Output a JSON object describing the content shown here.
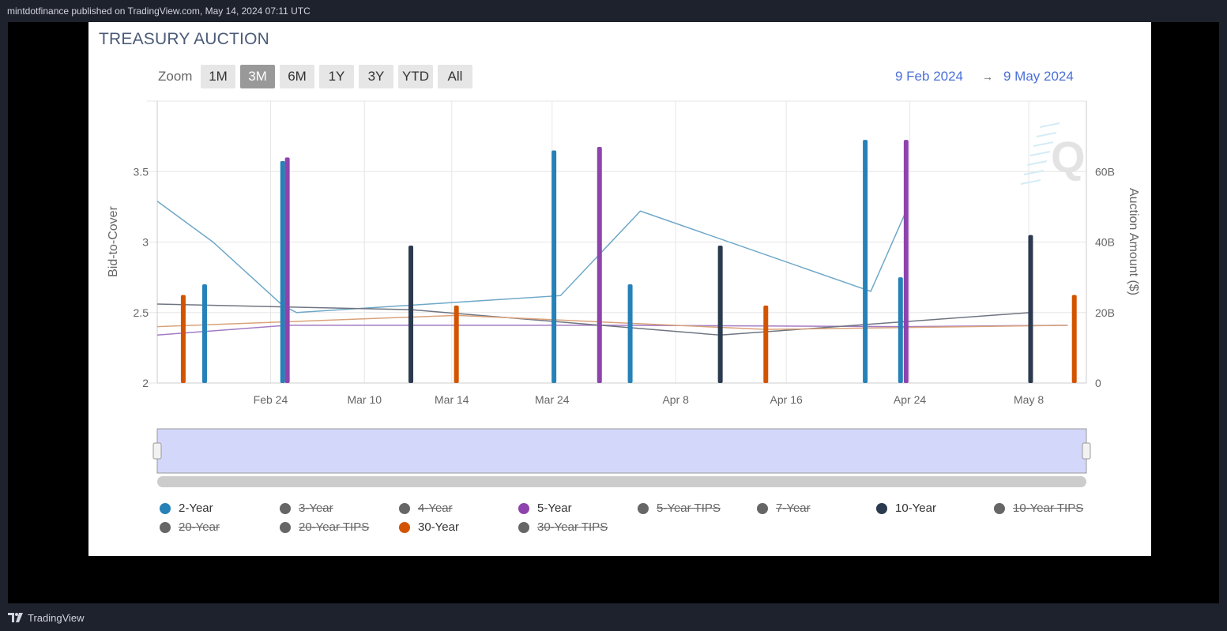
{
  "header": {
    "publisher_text": "mintdotfinance published on TradingView.com, May 14, 2024 07:11 UTC"
  },
  "footer": {
    "brand": "TradingView"
  },
  "card": {
    "title": "TREASURY AUCTION",
    "zoom_label": "Zoom",
    "zoom_buttons": [
      "1M",
      "3M",
      "6M",
      "1Y",
      "3Y",
      "YTD",
      "All"
    ],
    "zoom_active": "3M",
    "range_from": "9 Feb 2024",
    "range_arrow": "→",
    "range_to": "9 May 2024"
  },
  "colors": {
    "two_year": "#2681b8",
    "five_year": "#8e44ad",
    "ten_year": "#2b3a4e",
    "thirty_year": "#d35400",
    "hidden": "#666666",
    "navigator": "#d3d8fb"
  },
  "chart_data": {
    "type": "bar",
    "x_ticks": [
      "Feb 24",
      "Mar 10",
      "Mar 14",
      "Mar 24",
      "Apr 8",
      "Apr 16",
      "Apr 24",
      "May 8"
    ],
    "x_tick_pos": [
      0.122,
      0.223,
      0.317,
      0.425,
      0.558,
      0.677,
      0.81,
      0.938
    ],
    "ylabel_left": "Bid-to-Cover",
    "ylabel_right": "Auction Amount ($)",
    "yticks_left": [
      "2",
      "2.5",
      "3",
      "3.5"
    ],
    "yticks_right": [
      "0",
      "20B",
      "40B",
      "60B"
    ],
    "ylim_left": [
      2,
      4
    ],
    "ylim_right": [
      0,
      80
    ],
    "bars": [
      {
        "series": "30-Year",
        "x": 0.028,
        "amount": 25
      },
      {
        "series": "2-Year",
        "x": 0.051,
        "amount": 28
      },
      {
        "series": "2-Year",
        "x": 0.135,
        "amount": 63
      },
      {
        "series": "5-Year",
        "x": 0.14,
        "amount": 64
      },
      {
        "series": "10-Year",
        "x": 0.273,
        "amount": 39
      },
      {
        "series": "30-Year",
        "x": 0.322,
        "amount": 22
      },
      {
        "series": "2-Year",
        "x": 0.427,
        "amount": 66
      },
      {
        "series": "5-Year",
        "x": 0.476,
        "amount": 67
      },
      {
        "series": "2-Year",
        "x": 0.509,
        "amount": 28
      },
      {
        "series": "10-Year",
        "x": 0.606,
        "amount": 39
      },
      {
        "series": "30-Year",
        "x": 0.655,
        "amount": 22
      },
      {
        "series": "2-Year",
        "x": 0.762,
        "amount": 69
      },
      {
        "series": "2-Year",
        "x": 0.8,
        "amount": 30
      },
      {
        "series": "5-Year",
        "x": 0.806,
        "amount": 69
      },
      {
        "series": "10-Year",
        "x": 0.94,
        "amount": 42
      },
      {
        "series": "30-Year",
        "x": 0.987,
        "amount": 25
      }
    ],
    "lines": [
      {
        "series": "2-Year",
        "color": "#6ea8c8",
        "points": [
          [
            0.0,
            3.29
          ],
          [
            0.06,
            3.0
          ],
          [
            0.135,
            2.55
          ],
          [
            0.15,
            2.5
          ],
          [
            0.434,
            2.62
          ],
          [
            0.52,
            3.22
          ],
          [
            0.768,
            2.65
          ],
          [
            0.806,
            3.22
          ]
        ]
      },
      {
        "series": "5-Year",
        "color": "#a37ac4",
        "points": [
          [
            0.0,
            2.34
          ],
          [
            0.14,
            2.41
          ],
          [
            0.476,
            2.41
          ],
          [
            0.806,
            2.4
          ],
          [
            0.98,
            2.41
          ]
        ]
      },
      {
        "series": "10-Year",
        "color": "#6f7580",
        "points": [
          [
            0.0,
            2.56
          ],
          [
            0.273,
            2.52
          ],
          [
            0.606,
            2.34
          ],
          [
            0.94,
            2.5
          ]
        ]
      },
      {
        "series": "30-Year",
        "color": "#d9a27a",
        "points": [
          [
            0.0,
            2.4
          ],
          [
            0.322,
            2.48
          ],
          [
            0.655,
            2.38
          ],
          [
            0.98,
            2.41
          ]
        ]
      }
    ],
    "legend": [
      {
        "name": "2-Year",
        "color": "#2681b8",
        "hidden": false
      },
      {
        "name": "3-Year",
        "color": "#666666",
        "hidden": true
      },
      {
        "name": "4-Year",
        "color": "#666666",
        "hidden": true
      },
      {
        "name": "5-Year",
        "color": "#8e44ad",
        "hidden": false
      },
      {
        "name": "5-Year TIPS",
        "color": "#666666",
        "hidden": true
      },
      {
        "name": "7-Year",
        "color": "#666666",
        "hidden": true
      },
      {
        "name": "10-Year",
        "color": "#2b3a4e",
        "hidden": false
      },
      {
        "name": "10-Year TIPS",
        "color": "#666666",
        "hidden": true
      },
      {
        "name": "20-Year",
        "color": "#666666",
        "hidden": true
      },
      {
        "name": "20-Year TIPS",
        "color": "#666666",
        "hidden": true
      },
      {
        "name": "30-Year",
        "color": "#d35400",
        "hidden": false
      },
      {
        "name": "30-Year TIPS",
        "color": "#666666",
        "hidden": true
      }
    ]
  }
}
